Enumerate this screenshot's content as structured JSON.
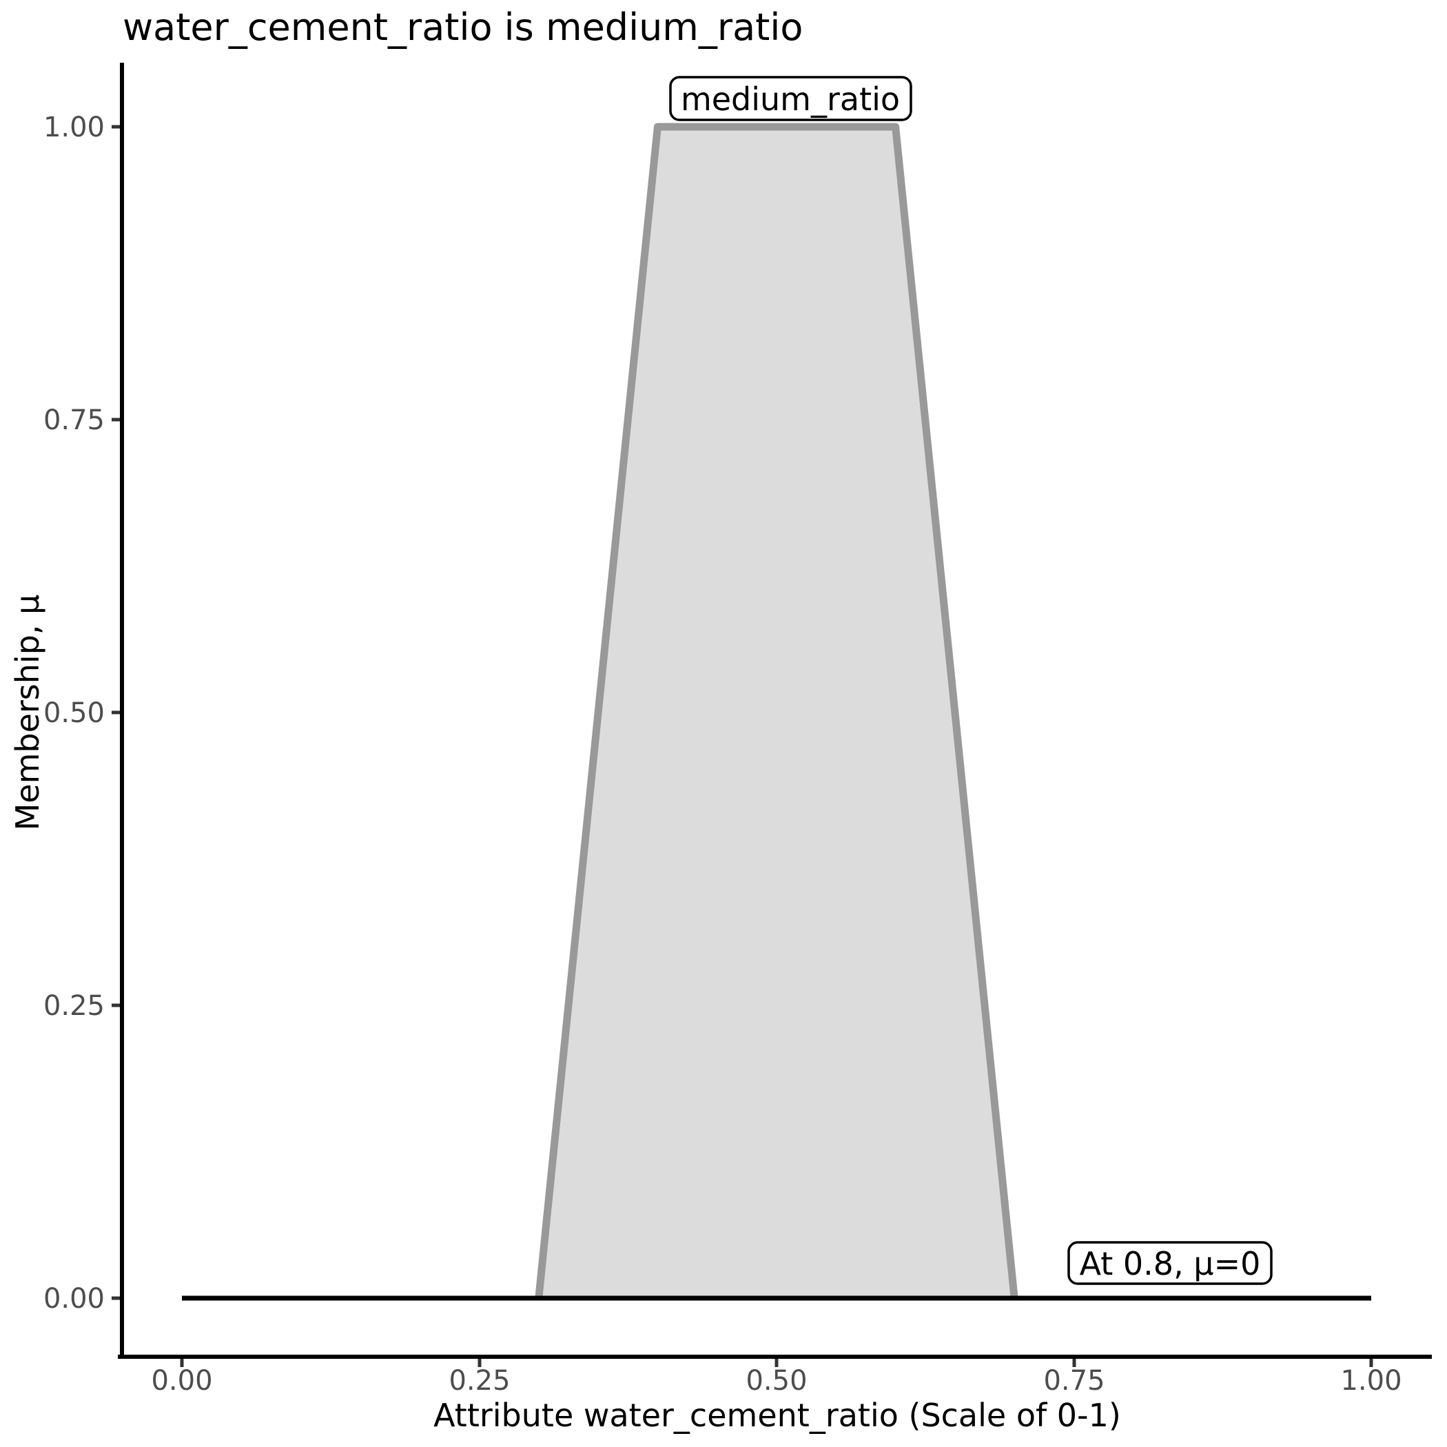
{
  "chart_data": {
    "type": "area",
    "title": "water_cement_ratio is medium_ratio",
    "xlabel": "Attribute water_cement_ratio (Scale of 0-1)",
    "ylabel": "Membership, μ",
    "xlim": [
      0,
      1
    ],
    "ylim": [
      0,
      1
    ],
    "grid": false,
    "legend": false,
    "x_tick_labels": [
      "0.00",
      "0.25",
      "0.50",
      "0.75",
      "1.00"
    ],
    "y_tick_labels": [
      "0.00",
      "0.25",
      "0.50",
      "0.75",
      "1.00"
    ],
    "series": [
      {
        "name": "medium_ratio",
        "shape": "trapezoidal_membership_function",
        "trapezoid_params": [
          0.3,
          0.4,
          0.6,
          0.7
        ],
        "points": [
          {
            "x": 0.0,
            "mu": 0
          },
          {
            "x": 0.3,
            "mu": 0
          },
          {
            "x": 0.4,
            "mu": 1
          },
          {
            "x": 0.6,
            "mu": 1
          },
          {
            "x": 0.7,
            "mu": 0
          },
          {
            "x": 1.0,
            "mu": 0
          }
        ],
        "fill_color": "#dcdcdc",
        "stroke_color": "#999999"
      }
    ],
    "baseline": {
      "mu": 0,
      "x_start": 0,
      "x_end": 1,
      "color": "#000000"
    },
    "annotations": [
      {
        "label": "medium_ratio",
        "x": 0.5,
        "mu": 1.0
      },
      {
        "label": "At 0.8, μ=0",
        "x": 0.8,
        "mu": 0.0
      }
    ],
    "colors": {
      "axis_line": "#000000",
      "tick_mark": "#333333",
      "tick_label": "#4d4d4d",
      "background": "#ffffff"
    }
  }
}
